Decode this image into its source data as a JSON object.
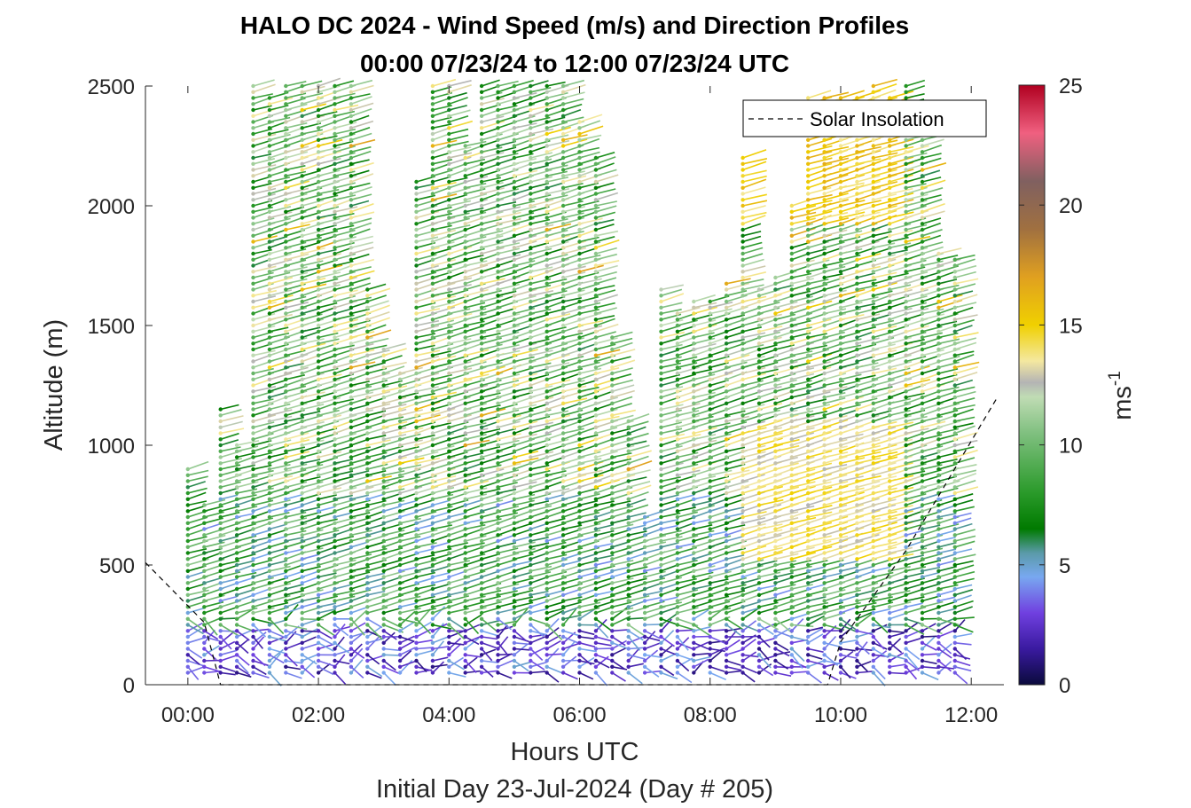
{
  "chart_data": {
    "type": "wind-barb-profile",
    "title_line1": "HALO DC 2024 - Wind Speed (m/s) and Direction Profiles",
    "title_line2": "00:00 07/23/24 to 12:00 07/23/24  UTC",
    "xlabel": "Hours UTC",
    "xlabel_sub": "Initial Day 23-Jul-2024 (Day # 205)",
    "ylabel": "Altitude (m)",
    "xlim": [
      -0.65,
      12.5
    ],
    "ylim": [
      0,
      2500
    ],
    "x_ticks": [
      {
        "value": 0,
        "label": "00:00"
      },
      {
        "value": 2,
        "label": "02:00"
      },
      {
        "value": 4,
        "label": "04:00"
      },
      {
        "value": 6,
        "label": "06:00"
      },
      {
        "value": 8,
        "label": "08:00"
      },
      {
        "value": 10,
        "label": "10:00"
      },
      {
        "value": 12,
        "label": "12:00"
      }
    ],
    "y_ticks": [
      {
        "value": 0,
        "label": "0"
      },
      {
        "value": 500,
        "label": "500"
      },
      {
        "value": 1000,
        "label": "1000"
      },
      {
        "value": 1500,
        "label": "1500"
      },
      {
        "value": 2000,
        "label": "2000"
      },
      {
        "value": 2500,
        "label": "2500"
      }
    ],
    "colorbar": {
      "label": "ms",
      "label_sup": "-1",
      "range": [
        0,
        25
      ],
      "ticks": [
        {
          "value": 0,
          "label": "0"
        },
        {
          "value": 5,
          "label": "5"
        },
        {
          "value": 10,
          "label": "10"
        },
        {
          "value": 15,
          "label": "15"
        },
        {
          "value": 20,
          "label": "20"
        },
        {
          "value": 25,
          "label": "25"
        }
      ],
      "stops": [
        {
          "v": 0,
          "c": "#0a0a3c"
        },
        {
          "v": 1.5,
          "c": "#3a1aa0"
        },
        {
          "v": 3,
          "c": "#7040e0"
        },
        {
          "v": 4.5,
          "c": "#78a8f0"
        },
        {
          "v": 5.5,
          "c": "#5a9aa8"
        },
        {
          "v": 6.5,
          "c": "#007a00"
        },
        {
          "v": 8,
          "c": "#2a9a2a"
        },
        {
          "v": 10.5,
          "c": "#80c080"
        },
        {
          "v": 12,
          "c": "#c0dcb4"
        },
        {
          "v": 12.6,
          "c": "#b4b4b4"
        },
        {
          "v": 13.5,
          "c": "#f4e8a0"
        },
        {
          "v": 15,
          "c": "#f0d000"
        },
        {
          "v": 17,
          "c": "#e0a020"
        },
        {
          "v": 19,
          "c": "#a07040"
        },
        {
          "v": 21,
          "c": "#806060"
        },
        {
          "v": 23,
          "c": "#f06080"
        },
        {
          "v": 25,
          "c": "#b00020"
        }
      ]
    },
    "legend": {
      "entries": [
        "Solar Insolation"
      ],
      "location": "top-right"
    },
    "solar_insolation": {
      "style": "dashed",
      "color": "#000000",
      "x": [
        -0.65,
        0.25,
        0.5,
        9.8,
        10.0,
        11.0,
        12.4
      ],
      "y": [
        510,
        260,
        0,
        0,
        180,
        560,
        1200
      ]
    },
    "profile_times_hours": [
      0.0,
      0.25,
      0.5,
      0.75,
      1.0,
      1.25,
      1.5,
      1.75,
      2.0,
      2.25,
      2.5,
      2.75,
      3.0,
      3.25,
      3.5,
      3.75,
      4.0,
      4.25,
      4.5,
      4.75,
      5.0,
      5.25,
      5.5,
      5.75,
      6.0,
      6.25,
      6.5,
      6.75,
      7.0,
      7.25,
      7.5,
      7.75,
      8.0,
      8.25,
      8.5,
      8.75,
      9.0,
      9.25,
      9.5,
      9.75,
      10.0,
      10.25,
      10.5,
      10.75,
      11.0,
      11.25,
      11.5,
      11.75
    ],
    "profile_top_altitude_m": [
      900,
      750,
      1150,
      1000,
      2500,
      2450,
      2500,
      2500,
      2500,
      2500,
      2500,
      1650,
      1400,
      1300,
      2100,
      2500,
      2500,
      2250,
      2500,
      2500,
      2500,
      2500,
      2500,
      2500,
      2350,
      2200,
      1450,
      1100,
      700,
      1650,
      1550,
      1620,
      1620,
      1680,
      2200,
      1650,
      1700,
      2000,
      2450,
      2450,
      2450,
      2450,
      2500,
      2450,
      2500,
      2400,
      1800,
      1780
    ],
    "profile_spacing_m": 25,
    "typical_speed_ranges_ms": [
      {
        "layer": "below 250 m",
        "speed_range": [
          1,
          5
        ]
      },
      {
        "layer": "250-800 m",
        "speed_range": [
          4,
          11
        ]
      },
      {
        "layer": "800-2500 m",
        "speed_range": [
          6,
          16
        ]
      }
    ]
  }
}
